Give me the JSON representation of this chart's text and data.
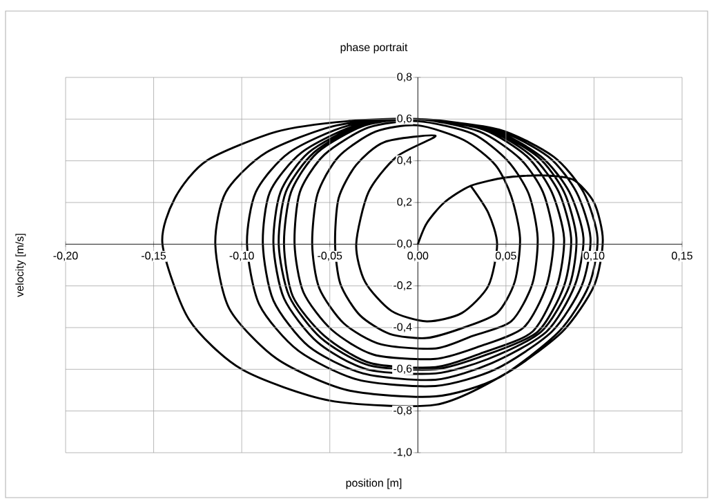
{
  "chart_data": {
    "type": "line",
    "title": "phase portrait",
    "xlabel": "position [m]",
    "ylabel": "velocity [m/s]",
    "color": "#000000",
    "grid": true,
    "xlim": [
      -0.2,
      0.15
    ],
    "ylim": [
      -1.0,
      0.8
    ],
    "xticks": [
      {
        "value": -0.2,
        "label": "-0,20"
      },
      {
        "value": -0.15,
        "label": "-0,15"
      },
      {
        "value": -0.1,
        "label": "-0,10"
      },
      {
        "value": -0.05,
        "label": "-0,05"
      },
      {
        "value": 0,
        "label": "0,00"
      },
      {
        "value": 0.05,
        "label": "0,05"
      },
      {
        "value": 0.1,
        "label": "0,10"
      },
      {
        "value": 0.15,
        "label": "0,15"
      }
    ],
    "yticks": [
      {
        "value": -1.0,
        "label": "-1,0"
      },
      {
        "value": -0.8,
        "label": "-0,8"
      },
      {
        "value": -0.6,
        "label": "-0,6"
      },
      {
        "value": -0.4,
        "label": "-0,4"
      },
      {
        "value": -0.2,
        "label": "-0,2"
      },
      {
        "value": 0,
        "label": "0,0"
      },
      {
        "value": 0.2,
        "label": "0,2"
      },
      {
        "value": 0.4,
        "label": "0,4"
      },
      {
        "value": 0.6,
        "label": "0,6"
      },
      {
        "value": 0.8,
        "label": "0,8"
      }
    ],
    "x": [
      0,
      0.005,
      0.015,
      0.03,
      0.05,
      0.07,
      0.088,
      0.1,
      0.105,
      0.1,
      0.082,
      0.05,
      0.01,
      -0.05,
      -0.1,
      -0.13,
      -0.145,
      -0.138,
      -0.12,
      -0.08,
      -0.04,
      0,
      0.046,
      0.077,
      0.094,
      0.102,
      0.097,
      0.08,
      0.046,
      0.01,
      -0.04,
      -0.08,
      -0.107,
      -0.115,
      -0.109,
      -0.086,
      -0.046,
      0,
      0.044,
      0.074,
      0.09,
      0.098,
      0.093,
      0.076,
      0.044,
      0.01,
      -0.034,
      -0.068,
      -0.09,
      -0.097,
      -0.092,
      -0.073,
      -0.039,
      0,
      0.042,
      0.07,
      0.086,
      0.094,
      0.089,
      0.073,
      0.042,
      0.01,
      -0.031,
      -0.062,
      -0.082,
      -0.088,
      -0.084,
      -0.066,
      -0.035,
      0,
      0.04,
      0.068,
      0.083,
      0.09,
      0.086,
      0.07,
      0.04,
      0.01,
      -0.029,
      -0.057,
      -0.076,
      -0.082,
      -0.078,
      -0.062,
      -0.033,
      0,
      0.039,
      0.065,
      0.08,
      0.087,
      0.083,
      0.068,
      0.039,
      0.01,
      -0.028,
      -0.055,
      -0.073,
      -0.079,
      -0.075,
      -0.059,
      -0.032,
      0,
      0.037,
      0.062,
      0.076,
      0.083,
      0.079,
      0.065,
      0.037,
      0.01,
      -0.027,
      -0.053,
      -0.071,
      -0.076,
      -0.072,
      -0.057,
      -0.03,
      0,
      0.035,
      0.058,
      0.071,
      0.077,
      0.073,
      0.06,
      0.035,
      0.01,
      -0.025,
      -0.049,
      -0.065,
      -0.07,
      -0.067,
      -0.053,
      -0.028,
      0,
      0.031,
      0.051,
      0.063,
      0.068,
      0.065,
      0.053,
      0.031,
      0.01,
      -0.021,
      -0.042,
      -0.056,
      -0.06,
      -0.057,
      -0.045,
      -0.024,
      0,
      0.026,
      0.044,
      0.053,
      0.058,
      0.055,
      0.045,
      0.026,
      0.005,
      -0.016,
      -0.033,
      -0.044,
      -0.047,
      -0.045,
      -0.035,
      -0.019,
      0.01,
      -0.012,
      -0.028,
      -0.035,
      -0.03,
      -0.015,
      0.005,
      0.025,
      0.04,
      0.045,
      0.04,
      0.03
    ],
    "values": [
      0,
      0.1,
      0.2,
      0.28,
      0.32,
      0.33,
      0.31,
      0.2,
      0.02,
      -0.2,
      -0.42,
      -0.62,
      -0.77,
      -0.75,
      -0.6,
      -0.36,
      0,
      0.22,
      0.4,
      0.54,
      0.59,
      0.6,
      0.55,
      0.42,
      0.25,
      0.03,
      -0.2,
      -0.42,
      -0.64,
      -0.73,
      -0.7,
      -0.55,
      -0.31,
      0,
      0.25,
      0.44,
      0.57,
      0.6,
      0.55,
      0.42,
      0.25,
      0.03,
      -0.2,
      -0.42,
      -0.6,
      -0.68,
      -0.65,
      -0.51,
      -0.29,
      0,
      0.25,
      0.44,
      0.57,
      0.6,
      0.55,
      0.42,
      0.25,
      0.03,
      -0.2,
      -0.42,
      -0.57,
      -0.65,
      -0.62,
      -0.49,
      -0.27,
      0,
      0.25,
      0.44,
      0.57,
      0.6,
      0.55,
      0.42,
      0.25,
      0.03,
      -0.2,
      -0.42,
      -0.55,
      -0.62,
      -0.6,
      -0.47,
      -0.26,
      0,
      0.25,
      0.44,
      0.57,
      0.6,
      0.55,
      0.42,
      0.25,
      0.03,
      -0.2,
      -0.42,
      -0.53,
      -0.6,
      -0.58,
      -0.45,
      -0.25,
      0,
      0.25,
      0.44,
      0.57,
      0.6,
      0.55,
      0.42,
      0.25,
      0.03,
      -0.2,
      -0.42,
      -0.52,
      -0.59,
      -0.57,
      -0.44,
      -0.25,
      0,
      0.25,
      0.44,
      0.57,
      0.6,
      0.54,
      0.41,
      0.25,
      0.03,
      -0.2,
      -0.4,
      -0.49,
      -0.55,
      -0.53,
      -0.41,
      -0.23,
      0,
      0.25,
      0.43,
      0.56,
      0.59,
      0.53,
      0.4,
      0.24,
      0.03,
      -0.19,
      -0.37,
      -0.44,
      -0.5,
      -0.48,
      -0.38,
      -0.21,
      0,
      0.24,
      0.42,
      0.54,
      0.57,
      0.5,
      0.38,
      0.23,
      0.03,
      -0.18,
      -0.33,
      -0.4,
      -0.45,
      -0.43,
      -0.34,
      -0.19,
      0,
      0.22,
      0.38,
      0.49,
      0.52,
      0.42,
      0.25,
      0,
      -0.18,
      -0.32,
      -0.37,
      -0.33,
      -0.2,
      0,
      0.15,
      0.28
    ]
  }
}
